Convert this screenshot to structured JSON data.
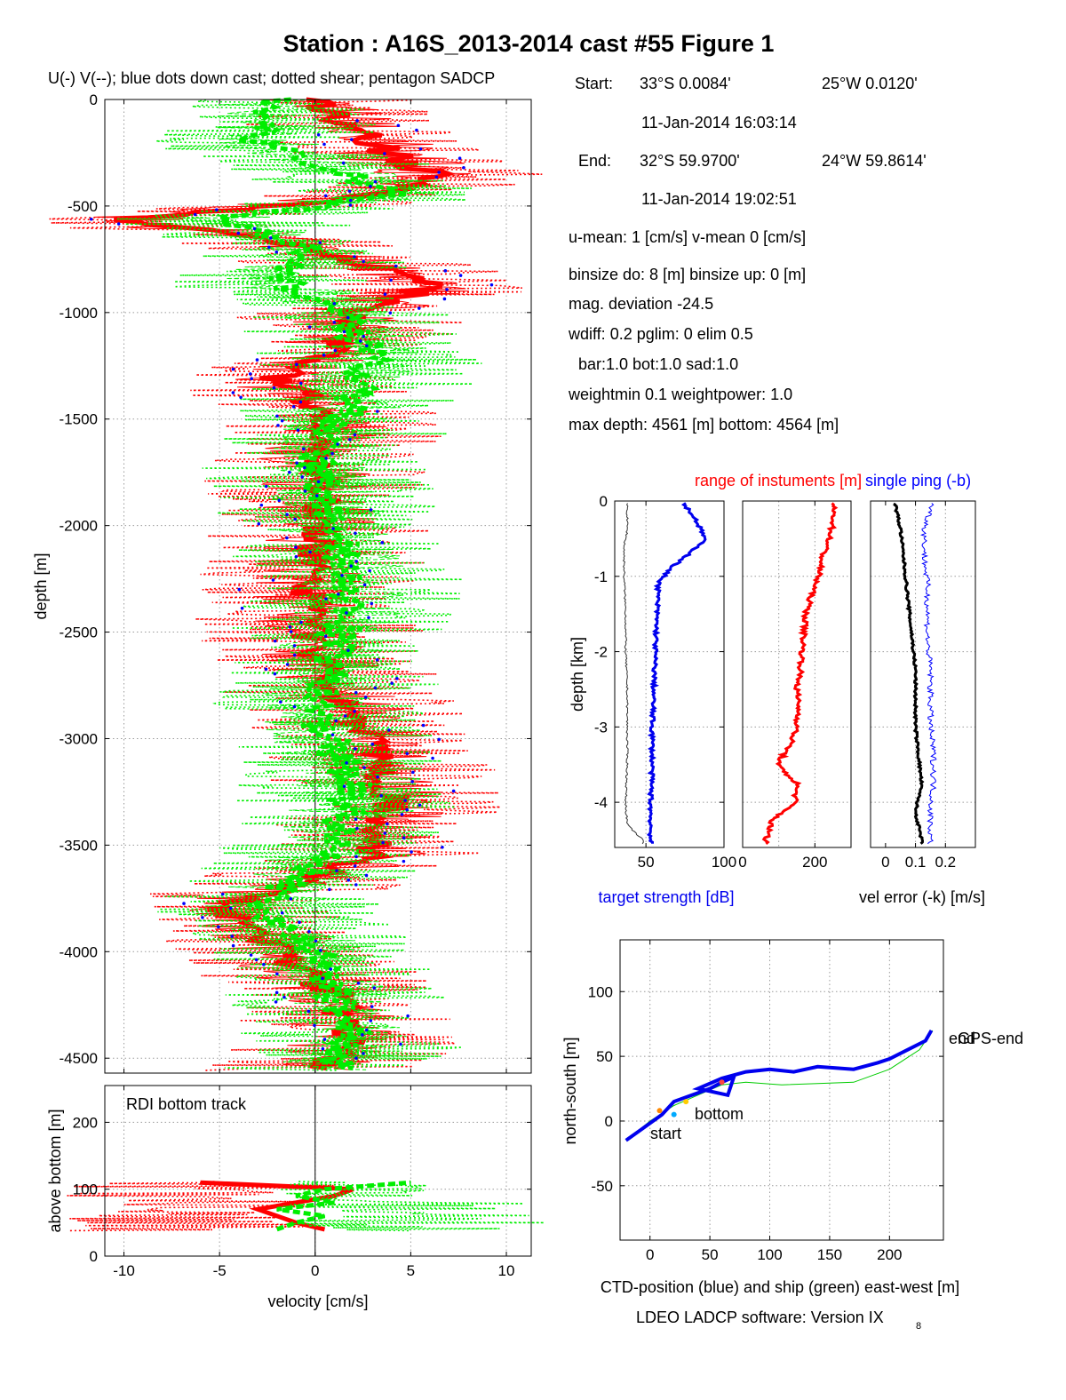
{
  "figure": {
    "title": "Station : A16S_2013-2014 cast #55  Figure 1",
    "subtitle": "U(-) V(--); blue dots down cast; dotted shear; pentagon SADCP",
    "footer": "LDEO LADCP software: Version IX",
    "footer_sub": "8"
  },
  "info": {
    "start_label": "Start:",
    "start_lat": "33°S  0.0084'",
    "start_lon": "25°W  0.0120'",
    "start_time": "11-Jan-2014 16:03:14",
    "end_label": "End:",
    "end_lat": "32°S 59.9700'",
    "end_lon": "24°W 59.8614'",
    "end_time": "11-Jan-2014 19:02:51",
    "means": "u-mean:   1 [cm/s]    v-mean   0 [cm/s]",
    "binsize": "binsize do: 8 [m]  binsize up:  0 [m]",
    "magdev": "mag. deviation -24.5",
    "wdiff": "wdiff: 0.2  pglim: 0  elim 0.5",
    "bar": "bar:1.0 bot:1.0 sad:1.0",
    "weight": "weightmin 0.1  weightpower: 1.0",
    "depth": "max depth: 4561 [m]   bottom: 4564 [m]"
  },
  "colors": {
    "u": "#ff0000",
    "v": "#00ee00",
    "downcast_dots": "#0000ff",
    "target_strength": "#0000ee",
    "range": "#ff0000",
    "vel_error": "#000000",
    "single_ping": "#0000ff",
    "ctd_track": "#0000ee",
    "ship_track": "#00cc00"
  },
  "chart_data": [
    {
      "id": "velocity_profile",
      "type": "line",
      "xlabel": "",
      "ylabel": "depth [m]",
      "xlim": [
        -11,
        11.3
      ],
      "ylim": [
        -4570,
        0
      ],
      "xticks": [
        -10,
        -5,
        0,
        5,
        10
      ],
      "yticks": [
        0,
        -500,
        -1000,
        -1500,
        -2000,
        -2500,
        -3000,
        -3500,
        -4000,
        -4500
      ],
      "grid": true,
      "series": [
        {
          "depth": [
            0,
            -200,
            -350,
            -450,
            -500,
            -560,
            -650,
            -800,
            -880,
            -1000,
            -1200,
            -1300,
            -1500,
            -1700,
            -2000,
            -2300,
            -2600,
            -2900,
            -3000,
            -3300,
            -3550,
            -3800,
            -4000,
            -4200,
            -4400,
            -4550
          ],
          "values": [
            0,
            3,
            6,
            3,
            -2,
            -10,
            -3,
            4,
            6,
            2,
            1,
            -2,
            1,
            0,
            0.5,
            -0.5,
            0,
            2,
            3,
            4,
            3,
            -5,
            -2,
            1,
            2,
            0
          ]
        },
        {
          "depth": [
            0,
            -200,
            -350,
            -450,
            -560,
            -700,
            -850,
            -1000,
            -1200,
            -1400,
            -1700,
            -2000,
            -2300,
            -2600,
            -2900,
            -3200,
            -3500,
            -3800,
            -4000,
            -4200,
            -4400,
            -4550
          ],
          "values": [
            -2,
            -3,
            2,
            4,
            -5,
            0,
            -2,
            1,
            3,
            2,
            0,
            1,
            2,
            1,
            0,
            2,
            1,
            -3,
            0,
            1,
            2,
            1
          ]
        }
      ]
    },
    {
      "id": "bottom_track",
      "type": "line",
      "xlabel": "velocity [cm/s]",
      "ylabel": "above bottom [m]",
      "annotation": "RDI bottom track",
      "xlim": [
        -11,
        11.3
      ],
      "ylim": [
        0,
        255
      ],
      "xticks": [
        -10,
        -5,
        0,
        5,
        10
      ],
      "yticks": [
        0,
        100,
        200
      ],
      "grid": true,
      "series": [
        {
          "height": [
            40,
            50,
            60,
            70,
            80,
            90,
            100,
            110
          ],
          "values": [
            0.5,
            -1,
            -2,
            -3,
            -1,
            1,
            2,
            -6
          ]
        },
        {
          "height": [
            40,
            50,
            60,
            70,
            80,
            90,
            100,
            110
          ],
          "values": [
            -2,
            -1,
            0.5,
            -2,
            1,
            -1,
            0.5,
            5
          ]
        }
      ]
    },
    {
      "id": "target_strength",
      "type": "line",
      "xlabel": "target strength [dB]",
      "ylabel": "depth [km]",
      "xlim": [
        30,
        100
      ],
      "ylim": [
        -4.6,
        0
      ],
      "xticks": [
        50,
        100
      ],
      "yticks": [
        0,
        -1,
        -2,
        -3,
        -4
      ],
      "grid": true,
      "series": [
        {
          "depth": [
            -0.05,
            -0.25,
            -0.5,
            -0.7,
            -0.9,
            -1.1,
            -1.5,
            -2.0,
            -2.5,
            -3.0,
            -3.5,
            -4.0,
            -4.5
          ],
          "values": [
            75,
            82,
            88,
            78,
            65,
            58,
            57,
            56,
            55,
            54,
            54,
            53,
            53
          ]
        },
        {
          "depth": [
            -0.4,
            -0.6,
            -1.0,
            -1.5,
            -2.0,
            -2.5,
            -3.0,
            -3.5,
            -4.0,
            -4.3,
            -4.5
          ],
          "values": [
            38,
            36,
            36,
            37,
            37,
            38,
            38,
            38,
            37,
            38,
            48
          ]
        }
      ]
    },
    {
      "id": "range",
      "type": "line",
      "xlabel": "",
      "legend": "range of instuments [m]",
      "xlim": [
        0,
        300
      ],
      "ylim": [
        -4.6,
        0
      ],
      "xticks": [
        0,
        200
      ],
      "grid": true,
      "values": [
        250,
        252,
        240,
        220,
        210,
        190,
        175,
        170,
        165,
        160,
        150,
        155,
        150,
        130,
        95,
        150,
        145,
        80,
        65
      ]
    },
    {
      "id": "vel_error",
      "type": "line",
      "xlabel": "vel error (-k) [m/s]",
      "legend": "single ping (-b)",
      "xlim": [
        -0.05,
        0.3
      ],
      "ylim": [
        -4.6,
        0
      ],
      "xticks": [
        0,
        0.1,
        0.2
      ],
      "grid": true,
      "series": [
        {
          "values": [
            0.03,
            0.05,
            0.06,
            0.07,
            0.08,
            0.09,
            0.1,
            0.1,
            0.1,
            0.11,
            0.12,
            0.1,
            0.12
          ]
        },
        {
          "values": [
            0.16,
            0.13,
            0.13,
            0.14,
            0.14,
            0.14,
            0.15,
            0.15,
            0.15,
            0.16,
            0.16,
            0.15,
            0.15
          ]
        }
      ]
    },
    {
      "id": "track",
      "type": "line",
      "xlabel": "CTD-position (blue) and ship (green) east-west [m]",
      "ylabel": "north-south [m]",
      "xlim": [
        -25,
        245
      ],
      "ylim": [
        -92,
        140
      ],
      "xticks": [
        0,
        50,
        100,
        150,
        200
      ],
      "yticks": [
        -50,
        0,
        50,
        100
      ],
      "grid": true,
      "labels": [
        "start",
        "bottom",
        "end",
        "GPS-end"
      ],
      "series": [
        {
          "x": [
            -20,
            -5,
            10,
            20,
            35,
            50,
            60,
            70,
            65,
            40,
            60,
            80,
            100,
            120,
            140,
            170,
            190,
            200,
            215,
            230,
            235
          ],
          "y": [
            -15,
            -5,
            5,
            15,
            20,
            25,
            30,
            34,
            20,
            25,
            33,
            38,
            40,
            38,
            42,
            40,
            45,
            48,
            55,
            62,
            70
          ]
        },
        {
          "x": [
            -20,
            0,
            20,
            40,
            60,
            80,
            110,
            140,
            170,
            200,
            225,
            236
          ],
          "y": [
            -15,
            0,
            12,
            20,
            28,
            30,
            28,
            29,
            30,
            40,
            55,
            70
          ]
        }
      ]
    }
  ]
}
